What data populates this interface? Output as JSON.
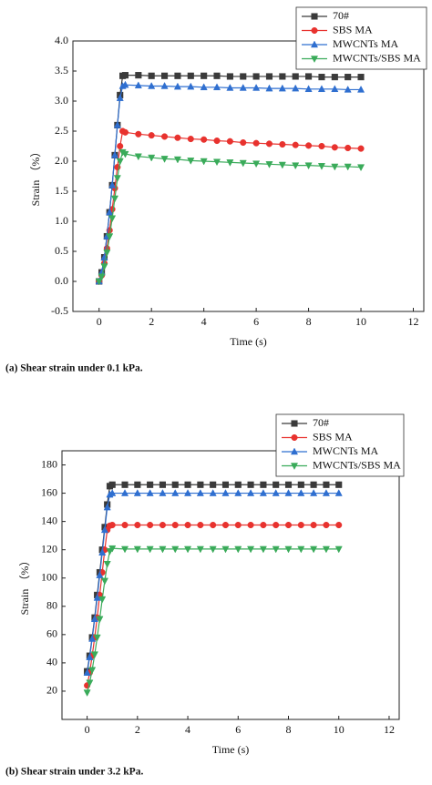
{
  "chart_data": [
    {
      "type": "line",
      "caption": "(a) Shear strain under 0.1 kPa.",
      "xlabel": "Time (s)",
      "ylabel": "Strain （%）",
      "xlim": [
        -1,
        12.4
      ],
      "xticks": [
        0,
        2,
        4,
        6,
        8,
        10,
        12
      ],
      "ylim": [
        -0.5,
        4.0
      ],
      "yticks": [
        -0.5,
        {
          "value": 0,
          "label": "0.0"
        },
        0.5,
        {
          "value": 1,
          "label": "1.0"
        },
        1.5,
        {
          "value": 2,
          "label": "2.0"
        },
        2.5,
        {
          "value": 3,
          "label": "3.0"
        },
        3.5,
        {
          "value": 4,
          "label": "4.0"
        }
      ],
      "legend": "upper right",
      "x": [
        0,
        0.1,
        0.2,
        0.3,
        0.4,
        0.5,
        0.6,
        0.7,
        0.8,
        0.9,
        1.0,
        1.5,
        2,
        2.5,
        3,
        3.5,
        4,
        4.5,
        5,
        5.5,
        6,
        6.5,
        7,
        7.5,
        8,
        8.5,
        9,
        9.5,
        10
      ],
      "series": [
        {
          "name": "70#",
          "color": "#3a3a3a",
          "marker": "square",
          "values": [
            0,
            0.15,
            0.4,
            0.75,
            1.15,
            1.6,
            2.1,
            2.6,
            3.1,
            3.42,
            3.43,
            3.43,
            3.42,
            3.42,
            3.42,
            3.42,
            3.42,
            3.42,
            3.41,
            3.41,
            3.41,
            3.41,
            3.41,
            3.41,
            3.41,
            3.4,
            3.4,
            3.4,
            3.4
          ]
        },
        {
          "name": "SBS MA",
          "color": "#e8322e",
          "marker": "circle",
          "values": [
            0,
            0.1,
            0.3,
            0.55,
            0.85,
            1.2,
            1.55,
            1.9,
            2.25,
            2.5,
            2.48,
            2.45,
            2.43,
            2.41,
            2.39,
            2.37,
            2.36,
            2.34,
            2.33,
            2.31,
            2.3,
            2.29,
            2.28,
            2.27,
            2.26,
            2.25,
            2.23,
            2.22,
            2.21
          ]
        },
        {
          "name": "MWCNTs MA",
          "color": "#2f6fd0",
          "marker": "triangle-up",
          "values": [
            0,
            0.15,
            0.4,
            0.75,
            1.15,
            1.6,
            2.1,
            2.6,
            3.05,
            3.25,
            3.27,
            3.26,
            3.25,
            3.25,
            3.24,
            3.24,
            3.23,
            3.23,
            3.22,
            3.22,
            3.22,
            3.21,
            3.21,
            3.21,
            3.2,
            3.2,
            3.2,
            3.19,
            3.19
          ]
        },
        {
          "name": "MWCNTs/SBS MA",
          "color": "#3aab5a",
          "marker": "triangle-down",
          "values": [
            0,
            0.08,
            0.25,
            0.48,
            0.75,
            1.05,
            1.38,
            1.72,
            2.0,
            2.15,
            2.12,
            2.08,
            2.06,
            2.04,
            2.03,
            2.01,
            2.0,
            1.99,
            1.98,
            1.97,
            1.96,
            1.95,
            1.94,
            1.93,
            1.93,
            1.92,
            1.91,
            1.91,
            1.9
          ]
        }
      ]
    },
    {
      "type": "line",
      "caption": "(b) Shear strain under 3.2 kPa.",
      "xlabel": "Time (s)",
      "ylabel": "Strain （%）",
      "xlim": [
        -1,
        12.4
      ],
      "xticks": [
        0,
        2,
        4,
        6,
        8,
        10,
        12
      ],
      "ylim": [
        0,
        190
      ],
      "yticks": [
        20,
        40,
        60,
        80,
        100,
        120,
        140,
        160,
        180
      ],
      "legend": "upper right",
      "x": [
        0,
        0.1,
        0.2,
        0.3,
        0.4,
        0.5,
        0.6,
        0.7,
        0.8,
        0.9,
        1.0,
        1.5,
        2,
        2.5,
        3,
        3.5,
        4,
        4.5,
        5,
        5.5,
        6,
        6.5,
        7,
        7.5,
        8,
        8.5,
        9,
        9.5,
        10
      ],
      "series": [
        {
          "name": "70#",
          "color": "#3a3a3a",
          "marker": "square",
          "values": [
            34,
            45,
            58,
            72,
            88,
            104,
            120,
            136,
            152,
            165,
            166,
            166,
            166,
            166,
            166,
            166,
            166,
            166,
            166,
            166,
            166,
            166,
            166,
            166,
            166,
            166,
            166,
            166,
            166
          ]
        },
        {
          "name": "SBS MA",
          "color": "#e8322e",
          "marker": "circle",
          "values": [
            24,
            33,
            45,
            58,
            72,
            88,
            104,
            120,
            134,
            137,
            137.5,
            137.5,
            137.5,
            137.5,
            137.5,
            137.5,
            137.5,
            137.5,
            137.5,
            137.5,
            137.5,
            137.5,
            137.5,
            137.5,
            137.5,
            137.5,
            137.5,
            137.5,
            137.5
          ]
        },
        {
          "name": "MWCNTs MA",
          "color": "#2f6fd0",
          "marker": "triangle-up",
          "values": [
            33,
            44,
            57,
            71,
            86,
            102,
            118,
            134,
            150,
            159,
            160,
            160,
            160,
            160,
            160,
            160,
            160,
            160,
            160,
            160,
            160,
            160,
            160,
            160,
            160,
            160,
            160,
            160,
            160
          ]
        },
        {
          "name": "MWCNTs/SBS MA",
          "color": "#3aab5a",
          "marker": "triangle-down",
          "values": [
            19,
            26,
            35,
            46,
            58,
            71,
            85,
            98,
            110,
            119,
            121,
            120.5,
            120.5,
            120.5,
            120.5,
            120.5,
            120.5,
            120.5,
            120.5,
            120.5,
            120.5,
            120.5,
            120.5,
            120.5,
            120.5,
            120.5,
            120.5,
            120.5,
            120.5
          ]
        }
      ]
    }
  ]
}
